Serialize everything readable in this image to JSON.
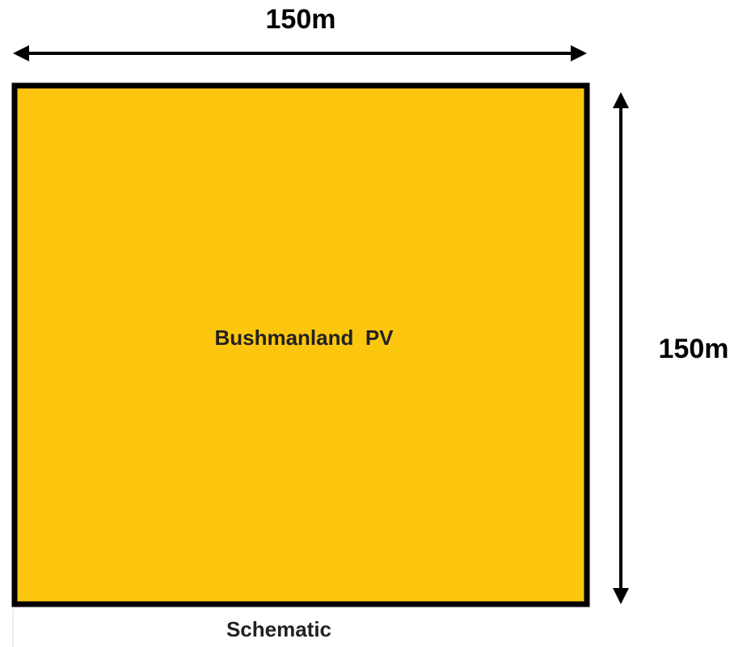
{
  "diagram": {
    "width_label": "150m",
    "height_label": "150m",
    "area_label": "Bushmanland  PV",
    "caption": "Schematic"
  }
}
